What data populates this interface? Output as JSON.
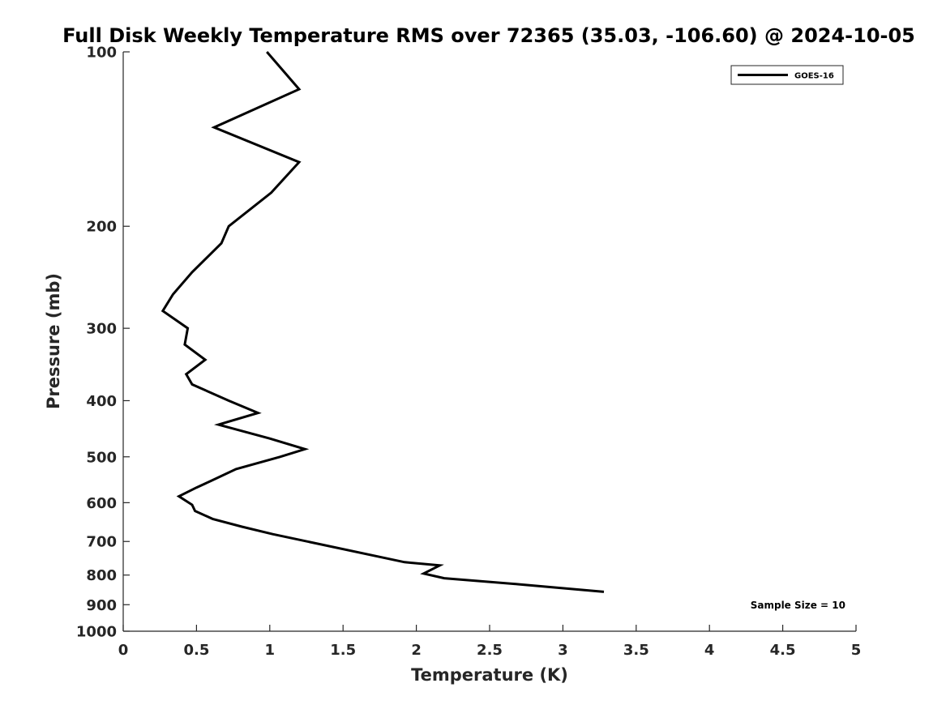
{
  "chart_data": {
    "type": "line",
    "title": "Full Disk Weekly Temperature RMS over 72365 (35.03, -106.60) @ 2024-10-05",
    "xlabel": "Temperature (K)",
    "ylabel": "Pressure (mb)",
    "xlim": [
      0,
      5
    ],
    "ylim": [
      100,
      1000
    ],
    "y_scale": "log",
    "y_reversed": true,
    "x_ticks": [
      "0",
      "0.5",
      "1",
      "1.5",
      "2",
      "2.5",
      "3",
      "3.5",
      "4",
      "4.5",
      "5"
    ],
    "y_ticks": [
      "100",
      "200",
      "300",
      "400",
      "500",
      "600",
      "700",
      "800",
      "900",
      "1000"
    ],
    "grid": false,
    "legend_position": "top-right",
    "annotation": "Sample Size = 10",
    "series": [
      {
        "name": "GOES-16",
        "color": "#000000",
        "points": [
          [
            0.98,
            100
          ],
          [
            1.2,
            116
          ],
          [
            0.62,
            135
          ],
          [
            1.2,
            155
          ],
          [
            1.01,
            175
          ],
          [
            0.72,
            200
          ],
          [
            0.67,
            214
          ],
          [
            0.47,
            240
          ],
          [
            0.34,
            262
          ],
          [
            0.27,
            280
          ],
          [
            0.44,
            300
          ],
          [
            0.42,
            320
          ],
          [
            0.56,
            340
          ],
          [
            0.43,
            360
          ],
          [
            0.47,
            375
          ],
          [
            0.72,
            400
          ],
          [
            0.92,
            420
          ],
          [
            0.65,
            440
          ],
          [
            1.0,
            465
          ],
          [
            1.24,
            485
          ],
          [
            1.07,
            500
          ],
          [
            0.77,
            525
          ],
          [
            0.6,
            550
          ],
          [
            0.5,
            565
          ],
          [
            0.38,
            585
          ],
          [
            0.47,
            605
          ],
          [
            0.49,
            620
          ],
          [
            0.61,
            640
          ],
          [
            0.81,
            660
          ],
          [
            1.02,
            680
          ],
          [
            1.92,
            760
          ],
          [
            2.16,
            770
          ],
          [
            2.05,
            795
          ],
          [
            2.19,
            810
          ],
          [
            2.7,
            830
          ],
          [
            3.28,
            855
          ]
        ]
      }
    ]
  }
}
